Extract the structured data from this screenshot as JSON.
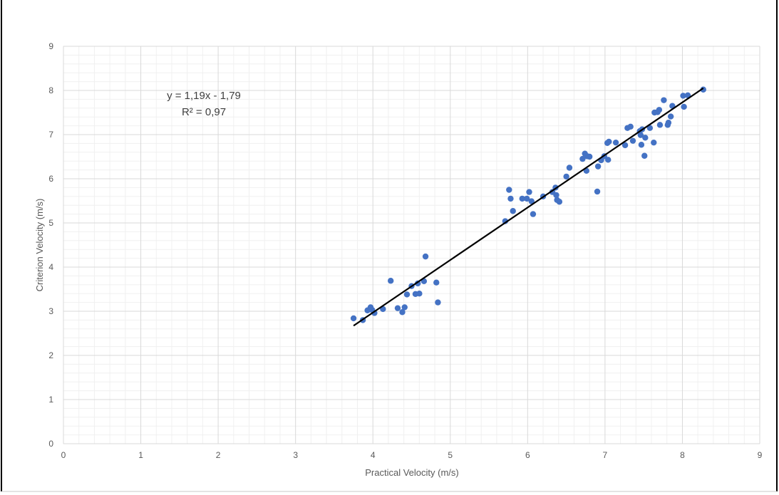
{
  "chart_data": {
    "type": "scatter",
    "title": "",
    "xlabel": "Practical Velocity (m/s)",
    "ylabel": "Criterion  Velocity (m/s)",
    "xlim": [
      0,
      9
    ],
    "ylim": [
      0,
      9
    ],
    "x_ticks": [
      "0",
      "1",
      "2",
      "3",
      "4",
      "5",
      "6",
      "7",
      "8",
      "9"
    ],
    "y_ticks": [
      "0",
      "1",
      "2",
      "3",
      "4",
      "5",
      "6",
      "7",
      "8",
      "9"
    ],
    "grid": true,
    "legend": "none",
    "colors": {
      "points": "#4472c4",
      "trendline": "#000000",
      "grid": "#d9d9d9",
      "text": "#595959"
    },
    "annotation": {
      "equation": "y = 1,19x - 1,79",
      "r_squared": "R² = 0,97"
    },
    "trendline": {
      "slope": 1.19,
      "intercept": -1.79,
      "x_start": 3.75,
      "x_end": 8.27
    },
    "points": [
      [
        3.75,
        2.84
      ],
      [
        3.87,
        2.8
      ],
      [
        3.93,
        3.02
      ],
      [
        3.97,
        3.09
      ],
      [
        3.99,
        3.03
      ],
      [
        4.02,
        2.96
      ],
      [
        4.13,
        3.05
      ],
      [
        4.23,
        3.69
      ],
      [
        4.32,
        3.07
      ],
      [
        4.38,
        2.98
      ],
      [
        4.41,
        3.09
      ],
      [
        4.44,
        3.38
      ],
      [
        4.5,
        3.57
      ],
      [
        4.55,
        3.39
      ],
      [
        4.58,
        3.63
      ],
      [
        4.6,
        3.4
      ],
      [
        4.66,
        3.68
      ],
      [
        4.68,
        4.24
      ],
      [
        4.82,
        3.65
      ],
      [
        4.84,
        3.2
      ],
      [
        5.71,
        5.04
      ],
      [
        5.76,
        5.75
      ],
      [
        5.78,
        5.55
      ],
      [
        5.81,
        5.27
      ],
      [
        5.93,
        5.55
      ],
      [
        5.99,
        5.55
      ],
      [
        6.02,
        5.7
      ],
      [
        6.05,
        5.49
      ],
      [
        6.07,
        5.2
      ],
      [
        6.2,
        5.6
      ],
      [
        6.32,
        5.7
      ],
      [
        6.36,
        5.8
      ],
      [
        6.37,
        5.63
      ],
      [
        6.38,
        5.52
      ],
      [
        6.41,
        5.48
      ],
      [
        6.5,
        6.05
      ],
      [
        6.54,
        6.25
      ],
      [
        6.71,
        6.45
      ],
      [
        6.74,
        6.57
      ],
      [
        6.76,
        6.18
      ],
      [
        6.77,
        6.51
      ],
      [
        6.8,
        6.5
      ],
      [
        6.9,
        5.71
      ],
      [
        6.91,
        6.28
      ],
      [
        6.95,
        6.42
      ],
      [
        6.99,
        6.51
      ],
      [
        7.03,
        6.81
      ],
      [
        7.04,
        6.43
      ],
      [
        7.05,
        6.84
      ],
      [
        7.14,
        6.82
      ],
      [
        7.26,
        6.76
      ],
      [
        7.29,
        7.15
      ],
      [
        7.33,
        7.18
      ],
      [
        7.36,
        6.86
      ],
      [
        7.45,
        7.08
      ],
      [
        7.46,
        6.99
      ],
      [
        7.47,
        6.77
      ],
      [
        7.48,
        7.12
      ],
      [
        7.51,
        6.52
      ],
      [
        7.52,
        6.93
      ],
      [
        7.58,
        7.15
      ],
      [
        7.63,
        6.82
      ],
      [
        7.64,
        7.5
      ],
      [
        7.68,
        7.51
      ],
      [
        7.7,
        7.56
      ],
      [
        7.71,
        7.22
      ],
      [
        7.76,
        7.78
      ],
      [
        7.81,
        7.22
      ],
      [
        7.82,
        7.27
      ],
      [
        7.85,
        7.41
      ],
      [
        7.87,
        7.65
      ],
      [
        8.01,
        7.88
      ],
      [
        8.02,
        7.63
      ],
      [
        8.07,
        7.89
      ],
      [
        8.27,
        8.02
      ]
    ]
  }
}
